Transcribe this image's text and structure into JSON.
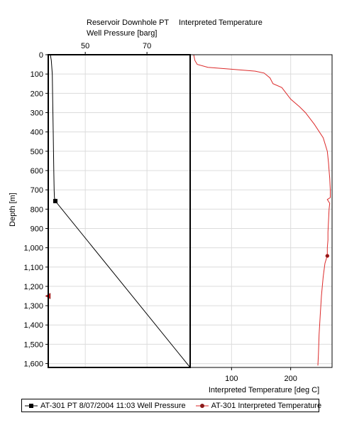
{
  "chart_data": {
    "type": "line",
    "y_axis": {
      "label": "Depth [m]",
      "ylim": [
        0,
        1620
      ],
      "ticks": [
        0,
        100,
        200,
        300,
        400,
        500,
        600,
        700,
        800,
        900,
        1000,
        1100,
        1200,
        1300,
        1400,
        1500,
        1600
      ],
      "tick_labels": [
        "0",
        "100",
        "200",
        "300",
        "400",
        "500",
        "600",
        "700",
        "800",
        "900",
        "1,000",
        "1,100",
        "1,200",
        "1,300",
        "1,400",
        "1,500",
        "1,600"
      ],
      "inverted": true
    },
    "panels": [
      {
        "id": "pressure",
        "title": "Reservoir Downhole PT",
        "xlabel": "Well Pressure [barg]",
        "axis_position": "top",
        "xlim": [
          38,
          84
        ],
        "ticks": [
          50,
          70
        ],
        "tick_labels": [
          "50",
          "70"
        ]
      },
      {
        "id": "temperature",
        "title": "Interpreted Temperature",
        "xlabel": "Interpreted Temperature [deg C]",
        "axis_position": "bottom",
        "xlim": [
          30,
          270
        ],
        "ticks": [
          100,
          200
        ],
        "tick_labels": [
          "100",
          "200"
        ]
      }
    ],
    "grid": true,
    "series": [
      {
        "name": "AT-301 PT 8/07/2004 11:03 Well Pressure",
        "panel": "pressure",
        "color": "#000000",
        "marker": "square",
        "points": [
          [
            38.7,
            0
          ],
          [
            39.0,
            30
          ],
          [
            39.3,
            100
          ],
          [
            39.4,
            200
          ],
          [
            39.6,
            400
          ],
          [
            39.8,
            600
          ],
          [
            39.9,
            700
          ],
          [
            40.0,
            740
          ],
          [
            40.3,
            758
          ],
          [
            84.0,
            1620
          ]
        ],
        "marker_points": [
          [
            40.3,
            758
          ]
        ]
      },
      {
        "name": "AT-301 Interpreted Temperature",
        "panel": "temperature",
        "color": "#dc2a2a",
        "marker": "circle",
        "points": [
          [
            36,
            0
          ],
          [
            38,
            30
          ],
          [
            42,
            50
          ],
          [
            60,
            65
          ],
          [
            100,
            75
          ],
          [
            140,
            85
          ],
          [
            155,
            95
          ],
          [
            165,
            120
          ],
          [
            170,
            150
          ],
          [
            185,
            170
          ],
          [
            200,
            230
          ],
          [
            215,
            270
          ],
          [
            225,
            300
          ],
          [
            240,
            360
          ],
          [
            255,
            430
          ],
          [
            262,
            500
          ],
          [
            264,
            560
          ],
          [
            265,
            600
          ],
          [
            266,
            640
          ],
          [
            267,
            700
          ],
          [
            267,
            740
          ],
          [
            262,
            750
          ],
          [
            266,
            770
          ],
          [
            265,
            800
          ],
          [
            264,
            860
          ],
          [
            263,
            920
          ],
          [
            263,
            960
          ],
          [
            262,
            1000
          ],
          [
            262,
            1040
          ],
          [
            258,
            1080
          ],
          [
            255,
            1150
          ],
          [
            252,
            1250
          ],
          [
            250,
            1350
          ],
          [
            248,
            1450
          ],
          [
            247,
            1550
          ],
          [
            246,
            1610
          ]
        ],
        "marker_points": [
          [
            262,
            1042
          ]
        ]
      }
    ],
    "annotations": [
      {
        "type": "triangle-marker",
        "panel": "pressure",
        "color": "#cc2222",
        "x": 38.0,
        "y": 1250
      }
    ],
    "legend_position": "bottom"
  }
}
